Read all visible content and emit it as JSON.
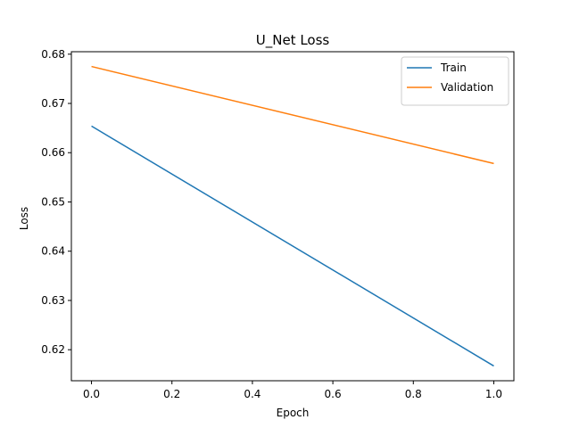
{
  "chart_data": {
    "type": "line",
    "title": "U_Net Loss",
    "xlabel": "Epoch",
    "ylabel": "Loss",
    "xlim": [
      -0.05,
      1.05
    ],
    "ylim": [
      0.6137,
      0.6805
    ],
    "x_ticks": [
      0.0,
      0.2,
      0.4,
      0.6,
      0.8,
      1.0
    ],
    "x_tick_labels": [
      "0.0",
      "0.2",
      "0.4",
      "0.6",
      "0.8",
      "1.0"
    ],
    "y_ticks": [
      0.62,
      0.63,
      0.64,
      0.65,
      0.66,
      0.67,
      0.68
    ],
    "y_tick_labels": [
      "0.62",
      "0.63",
      "0.64",
      "0.65",
      "0.66",
      "0.67",
      "0.68"
    ],
    "grid": false,
    "legend_position": "top-right",
    "series": [
      {
        "name": "Train",
        "color": "#1f77b4",
        "x": [
          0,
          1
        ],
        "y": [
          0.6654,
          0.6167
        ]
      },
      {
        "name": "Validation",
        "color": "#ff7f0e",
        "x": [
          0,
          1
        ],
        "y": [
          0.6775,
          0.6578
        ]
      }
    ]
  }
}
